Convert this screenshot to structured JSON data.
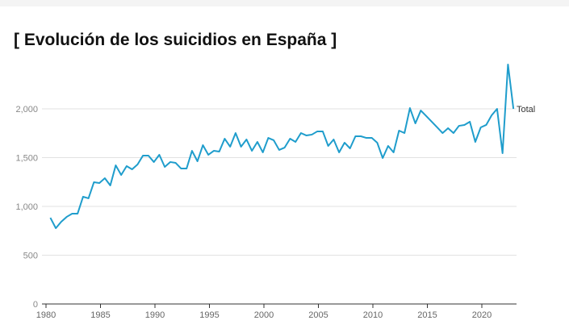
{
  "chart_data": {
    "type": "line",
    "title": "[ Evolución de los suicidios en España ]",
    "xlabel": "",
    "ylabel": "",
    "xlim": [
      1980,
      2023
    ],
    "ylim": [
      0,
      2450
    ],
    "x_ticks": [
      "1980",
      "1985",
      "1990",
      "1995",
      "2000",
      "2005",
      "2010",
      "2015",
      "2020"
    ],
    "y_ticks": [
      "0",
      "500",
      "1,000",
      "1,500",
      "2,000"
    ],
    "grid": true,
    "x_start": 1980.4,
    "x_step": 0.5,
    "series": [
      {
        "name": "Total",
        "color": "#1f9dcc",
        "values": [
          884,
          777,
          843,
          893,
          926,
          926,
          1099,
          1083,
          1248,
          1240,
          1289,
          1215,
          1421,
          1322,
          1413,
          1380,
          1430,
          1521,
          1521,
          1455,
          1529,
          1405,
          1455,
          1446,
          1388,
          1388,
          1570,
          1463,
          1628,
          1529,
          1570,
          1562,
          1694,
          1612,
          1752,
          1612,
          1686,
          1570,
          1661,
          1554,
          1702,
          1678,
          1579,
          1603,
          1694,
          1661,
          1752,
          1727,
          1736,
          1769,
          1769,
          1620,
          1686,
          1554,
          1653,
          1595,
          1719,
          1719,
          1702,
          1702,
          1653,
          1496,
          1620,
          1554,
          1777,
          1752,
          2008,
          1851,
          1983,
          1926,
          1868,
          1810,
          1752,
          1802,
          1752,
          1826,
          1835,
          1868,
          1661,
          1810,
          1835,
          1934,
          2000,
          1545,
          2455,
          2000
        ]
      }
    ]
  }
}
